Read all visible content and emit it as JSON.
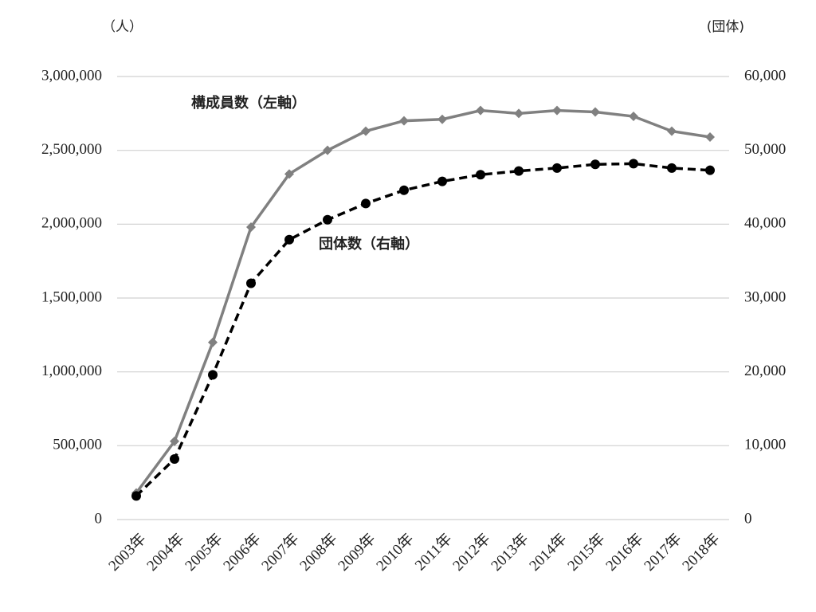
{
  "chart_data": {
    "type": "line",
    "y_label": "（人）",
    "y2_label": "(団体)",
    "categories": [
      "2003年",
      "2004年",
      "2005年",
      "2006年",
      "2007年",
      "2008年",
      "2009年",
      "2010年",
      "2011年",
      "2012年",
      "2013年",
      "2014年",
      "2015年",
      "2016年",
      "2017年",
      "2018年"
    ],
    "series": [
      {
        "name": "構成員数（左軸）",
        "color": "#808080",
        "marker": "diamond",
        "dashed": false,
        "values": [
          180000,
          530000,
          1200000,
          1980000,
          2340000,
          2500000,
          2630000,
          2700000,
          2710000,
          2770000,
          2750000,
          2770000,
          2760000,
          2730000,
          2630000,
          2590000
        ]
      },
      {
        "name": "団体数（右軸）",
        "color": "#000000",
        "marker": "circle",
        "dashed": true,
        "axis": "y2",
        "values": [
          3200,
          8200,
          19600,
          32000,
          37900,
          40600,
          42800,
          44600,
          45800,
          46700,
          47200,
          47600,
          48100,
          48200,
          47600,
          47300
        ]
      }
    ],
    "ylim": [
      0,
      3000000
    ],
    "yticks": [
      0,
      {
        "value": 500000,
        "label": "500,000"
      },
      {
        "value": 1000000,
        "label": "1,000,000"
      },
      {
        "value": 1500000,
        "label": "1,500,000"
      },
      {
        "value": 2000000,
        "label": "2,000,000"
      },
      {
        "value": 2500000,
        "label": "2,500,000"
      },
      {
        "value": 3000000,
        "label": "3,000,000"
      }
    ],
    "y2lim": [
      0,
      60000
    ],
    "y2ticks": [
      0,
      {
        "value": 10000,
        "label": "10,000"
      },
      {
        "value": 20000,
        "label": "20,000"
      },
      {
        "value": 30000,
        "label": "30,000"
      },
      {
        "value": 40000,
        "label": "40,000"
      },
      {
        "value": 50000,
        "label": "50,000"
      },
      {
        "value": 60000,
        "label": "60,000"
      }
    ],
    "grid": true,
    "grid_color": "#d0d0d0"
  }
}
